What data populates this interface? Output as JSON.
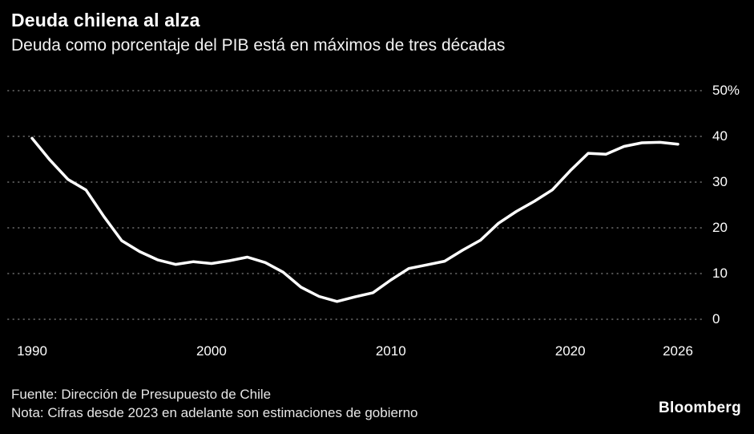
{
  "header": {
    "title": "Deuda chilena al alza",
    "subtitle": "Deuda como porcentaje del PIB está en máximos de tres décadas"
  },
  "footer": {
    "source": "Fuente: Dirección de Presupuesto de Chile",
    "note": "Nota: Cifras desde 2023 en adelante son estimaciones de gobierno",
    "brand": "Bloomberg"
  },
  "colors": {
    "background": "#000000",
    "line": "#ffffff",
    "grid": "#565656",
    "text": "#ffffff",
    "footer_text": "#e6e6e6"
  },
  "chart_data": {
    "type": "line",
    "title": "Deuda chilena al alza",
    "subtitle": "Deuda como porcentaje del PIB está en máximos de tres décadas",
    "series_name": "Deuda como porcentaje del PIB",
    "x": [
      1990,
      1991,
      1992,
      1993,
      1994,
      1995,
      1996,
      1997,
      1998,
      1999,
      2000,
      2001,
      2002,
      2003,
      2004,
      2005,
      2006,
      2007,
      2008,
      2009,
      2010,
      2011,
      2012,
      2013,
      2014,
      2015,
      2016,
      2017,
      2018,
      2019,
      2020,
      2021,
      2022,
      2023,
      2024,
      2025,
      2026
    ],
    "values": [
      39.6,
      34.8,
      30.6,
      28.3,
      22.5,
      17.2,
      14.8,
      13.0,
      12.0,
      12.6,
      12.2,
      12.8,
      13.6,
      12.4,
      10.3,
      7.0,
      5.0,
      3.9,
      4.9,
      5.8,
      8.6,
      11.1,
      11.9,
      12.7,
      15.1,
      17.3,
      21.0,
      23.6,
      25.8,
      28.3,
      32.5,
      36.3,
      36.1,
      37.8,
      38.6,
      38.7,
      38.3
    ],
    "xlabel": "",
    "ylabel": "",
    "ylim": [
      0,
      50
    ],
    "xlim": [
      1990,
      2026
    ],
    "y_ticks": [
      0,
      10,
      20,
      30,
      40,
      50
    ],
    "y_tick_labels": [
      "0",
      "10",
      "20",
      "30",
      "40",
      "50%"
    ],
    "x_ticks": [
      1990,
      2000,
      2010,
      2020,
      2026
    ],
    "x_tick_labels": [
      "1990",
      "2000",
      "2010",
      "2020",
      "2026"
    ],
    "grid": "horizontal-dotted",
    "legend_position": "none"
  }
}
